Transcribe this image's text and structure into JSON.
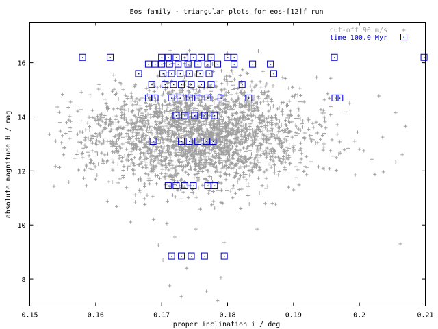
{
  "chart_data": {
    "type": "scatter",
    "title": "Eos family - triangular plots for eos-[12]f run",
    "xlabel": "proper inclination i / deg",
    "ylabel": "absolute magnitude H / mag",
    "xlim": [
      0.15,
      0.21
    ],
    "ylim": [
      7.0,
      17.5
    ],
    "x_ticks": [
      "0.15",
      "0.16",
      "0.17",
      "0.18",
      "0.19",
      "0.2",
      "0.21"
    ],
    "y_ticks": [
      "8",
      "10",
      "12",
      "14",
      "16"
    ],
    "x_tick_values": [
      0.15,
      0.16,
      0.17,
      0.18,
      0.19,
      0.2,
      0.21
    ],
    "y_tick_values": [
      8,
      10,
      12,
      14,
      16
    ],
    "legend_position": "top-right",
    "colors": {
      "background": "#ffffff",
      "cutoff": "#a0a0a0",
      "time": "#0000cc",
      "axes": "#000000"
    },
    "series": [
      {
        "name": "cut-off 90 m/s",
        "marker": "plus",
        "cloud": {
          "count": 2600,
          "x_center": 0.1755,
          "x_sd": 0.0085,
          "y_center": 13.35,
          "y_sd": 0.95,
          "x_range": [
            0.153,
            0.207
          ],
          "y_range": [
            7.2,
            16.5
          ]
        },
        "points": [
          [
            0.153,
            13.35
          ],
          [
            0.1548,
            13.05
          ],
          [
            0.1552,
            12.85
          ],
          [
            0.1562,
            14.55
          ],
          [
            0.1578,
            13.85
          ],
          [
            0.1586,
            11.45
          ],
          [
            0.1604,
            12.25
          ],
          [
            0.162,
            11.6
          ],
          [
            0.1645,
            14.8
          ],
          [
            0.166,
            10.85
          ],
          [
            0.1678,
            11.1
          ],
          [
            0.1688,
            10.2
          ],
          [
            0.1695,
            9.25
          ],
          [
            0.1702,
            8.7
          ],
          [
            0.1708,
            10.05
          ],
          [
            0.1712,
            7.75
          ],
          [
            0.172,
            9.55
          ],
          [
            0.173,
            7.35
          ],
          [
            0.1738,
            8.4
          ],
          [
            0.1752,
            9.85
          ],
          [
            0.1768,
            7.55
          ],
          [
            0.1785,
            7.2
          ],
          [
            0.179,
            8.05
          ],
          [
            0.1795,
            9.35
          ],
          [
            0.18,
            16.35
          ],
          [
            0.182,
            10.6
          ],
          [
            0.1845,
            9.85
          ],
          [
            0.1868,
            10.8
          ],
          [
            0.19,
            11.3
          ],
          [
            0.1945,
            12.1
          ],
          [
            0.1985,
            14.5
          ],
          [
            0.2,
            12.8
          ],
          [
            0.2035,
            13.25
          ],
          [
            0.2055,
            14.15
          ],
          [
            0.2062,
            9.3
          ],
          [
            0.2065,
            12.6
          ],
          [
            0.207,
            13.65
          ],
          [
            0.1713,
            16.45
          ],
          [
            0.1735,
            16.2
          ],
          [
            0.177,
            15.9
          ]
        ]
      },
      {
        "name": "time 100.0 Myr",
        "marker": "box",
        "points": [
          [
            0.158,
            16.2
          ],
          [
            0.1622,
            16.2
          ],
          [
            0.1962,
            16.2
          ],
          [
            0.2098,
            16.2
          ],
          [
            0.17,
            16.2
          ],
          [
            0.171,
            16.2
          ],
          [
            0.1722,
            16.2
          ],
          [
            0.1735,
            16.2
          ],
          [
            0.1748,
            16.2
          ],
          [
            0.176,
            16.2
          ],
          [
            0.1775,
            16.2
          ],
          [
            0.18,
            16.2
          ],
          [
            0.181,
            16.2
          ],
          [
            0.168,
            15.95
          ],
          [
            0.169,
            15.95
          ],
          [
            0.17,
            15.95
          ],
          [
            0.1712,
            15.95
          ],
          [
            0.1725,
            15.95
          ],
          [
            0.174,
            15.95
          ],
          [
            0.1755,
            15.95
          ],
          [
            0.177,
            15.95
          ],
          [
            0.1785,
            15.95
          ],
          [
            0.181,
            15.95
          ],
          [
            0.1838,
            15.95
          ],
          [
            0.1865,
            15.95
          ],
          [
            0.1665,
            15.6
          ],
          [
            0.1702,
            15.6
          ],
          [
            0.1715,
            15.6
          ],
          [
            0.1728,
            15.6
          ],
          [
            0.1742,
            15.6
          ],
          [
            0.1758,
            15.6
          ],
          [
            0.1772,
            15.6
          ],
          [
            0.187,
            15.6
          ],
          [
            0.1685,
            15.2
          ],
          [
            0.1705,
            15.2
          ],
          [
            0.1718,
            15.2
          ],
          [
            0.173,
            15.2
          ],
          [
            0.1745,
            15.2
          ],
          [
            0.176,
            15.2
          ],
          [
            0.1775,
            15.2
          ],
          [
            0.1822,
            15.2
          ],
          [
            0.168,
            14.7
          ],
          [
            0.169,
            14.7
          ],
          [
            0.1715,
            14.7
          ],
          [
            0.1728,
            14.7
          ],
          [
            0.1742,
            14.7
          ],
          [
            0.1755,
            14.7
          ],
          [
            0.177,
            14.7
          ],
          [
            0.179,
            14.7
          ],
          [
            0.1832,
            14.7
          ],
          [
            0.1963,
            14.7
          ],
          [
            0.197,
            14.7
          ],
          [
            0.1722,
            14.05
          ],
          [
            0.1735,
            14.05
          ],
          [
            0.175,
            14.05
          ],
          [
            0.1765,
            14.05
          ],
          [
            0.178,
            14.05
          ],
          [
            0.1687,
            13.1
          ],
          [
            0.173,
            13.1
          ],
          [
            0.1742,
            13.1
          ],
          [
            0.1755,
            13.1
          ],
          [
            0.1768,
            13.1
          ],
          [
            0.1778,
            13.1
          ],
          [
            0.171,
            11.45
          ],
          [
            0.1722,
            11.45
          ],
          [
            0.1735,
            11.45
          ],
          [
            0.1748,
            11.45
          ],
          [
            0.177,
            11.45
          ],
          [
            0.178,
            11.45
          ],
          [
            0.1715,
            8.85
          ],
          [
            0.173,
            8.85
          ],
          [
            0.1745,
            8.85
          ],
          [
            0.1765,
            8.85
          ],
          [
            0.1795,
            8.85
          ]
        ]
      }
    ]
  }
}
